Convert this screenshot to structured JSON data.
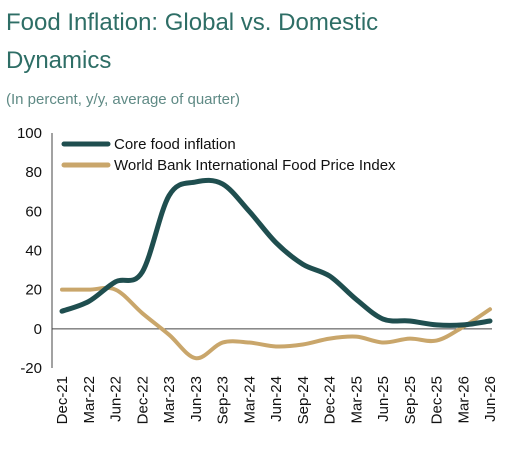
{
  "chart_data": {
    "type": "line",
    "title": [
      "Food Inflation: Global vs. Domestic",
      "Dynamics"
    ],
    "subtitle": "(In percent, y/y, average of quarter)",
    "categories": [
      "Dec-21",
      "Mar-22",
      "Jun-22",
      "Dec-22",
      "Mar-23",
      "Jun-23",
      "Sep-23",
      "Mar-24",
      "Jun-24",
      "Sep-24",
      "Dec-24",
      "Mar-25",
      "Jun-25",
      "Sep-25",
      "Dec-25",
      "Mar-26",
      "Jun-26"
    ],
    "series": [
      {
        "name": "Core food inflation",
        "color": "#1f4e4f",
        "values": [
          9,
          14,
          24,
          29,
          68,
          75,
          74,
          60,
          44,
          33,
          27,
          15,
          5,
          4,
          2,
          2,
          4
        ]
      },
      {
        "name": "World Bank International Food Price Index",
        "color": "#c9a66b",
        "values": [
          20,
          20,
          20,
          8,
          -3,
          -15,
          -7,
          -7,
          -9,
          -8,
          -5,
          -4,
          -7,
          -5,
          -6,
          1,
          10
        ]
      }
    ],
    "ylim": [
      -20,
      100
    ],
    "yticks": [
      -20,
      0,
      20,
      40,
      60,
      80,
      100
    ],
    "legend": "top-left"
  }
}
